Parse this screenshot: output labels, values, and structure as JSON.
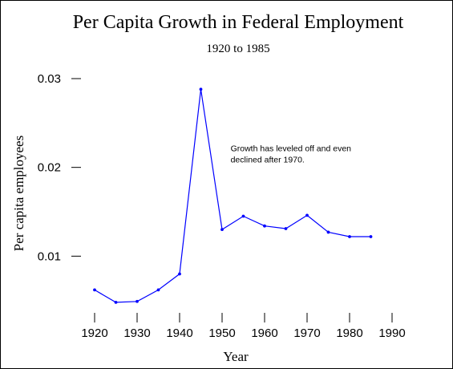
{
  "chart_data": {
    "type": "line",
    "title": "Per Capita Growth in Federal Employment",
    "subtitle": "1920 to 1985",
    "xlabel": "Year",
    "ylabel": "Per capita employees",
    "xlim": [
      1920,
      1990
    ],
    "ylim": [
      0.0,
      0.03
    ],
    "x_ticks": [
      1920,
      1930,
      1940,
      1950,
      1960,
      1970,
      1980,
      1990
    ],
    "y_ticks": [
      0.01,
      0.02,
      0.03
    ],
    "x_tick_labels": [
      "1920",
      "1930",
      "1940",
      "1950",
      "1960",
      "1970",
      "1980",
      "1990"
    ],
    "y_tick_labels": [
      "0.01",
      "0.02",
      "0.03"
    ],
    "series": [
      {
        "color": "#0000ff",
        "x": [
          1920,
          1925,
          1930,
          1935,
          1940,
          1945,
          1950,
          1955,
          1960,
          1965,
          1970,
          1975,
          1980,
          1985
        ],
        "y": [
          0.0062,
          0.0048,
          0.0049,
          0.0062,
          0.008,
          0.0288,
          0.013,
          0.0145,
          0.0134,
          0.0131,
          0.0146,
          0.0127,
          0.0122,
          0.0122
        ]
      }
    ],
    "annotation": {
      "lines": [
        "Growth has leveled off and even",
        "declined after 1970."
      ],
      "x": 1952,
      "y": 0.0218
    },
    "grid": false,
    "legend": "none"
  }
}
